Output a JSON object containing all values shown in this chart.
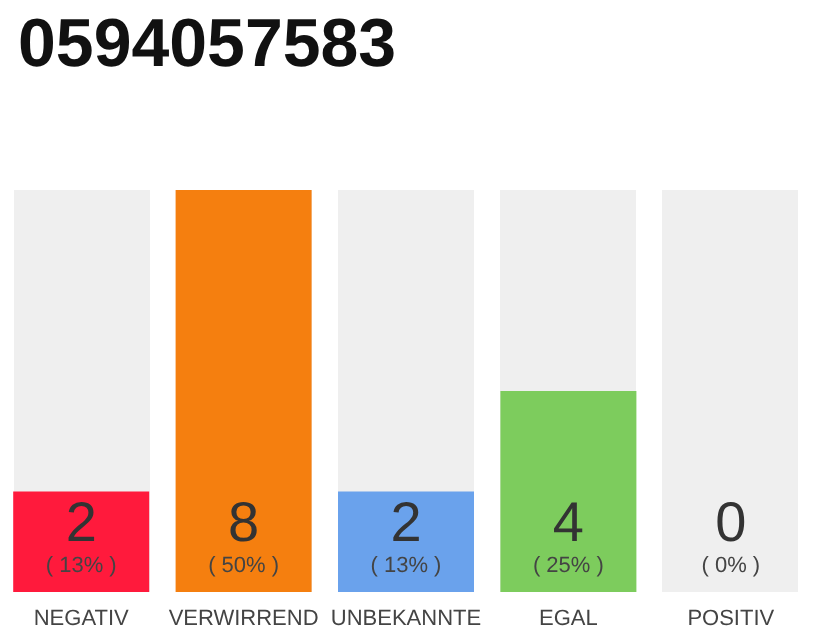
{
  "chart_data": {
    "type": "bar",
    "title": "0594057583",
    "categories": [
      "NEGATIV",
      "VERWIRREND",
      "UNBEKANNTE",
      "EGAL",
      "POSITIV"
    ],
    "values": [
      2,
      8,
      2,
      4,
      0
    ],
    "colors": [
      "#ff1a3c",
      "#f57f0f",
      "#6aa2ec",
      "#7dcc5d",
      "#e0e0e0"
    ],
    "value_labels": [
      "2\n( 13% )",
      "8\n( 50% )",
      "2\n( 13% )",
      "4\n( 25% )",
      "0\n( 0% )"
    ]
  }
}
